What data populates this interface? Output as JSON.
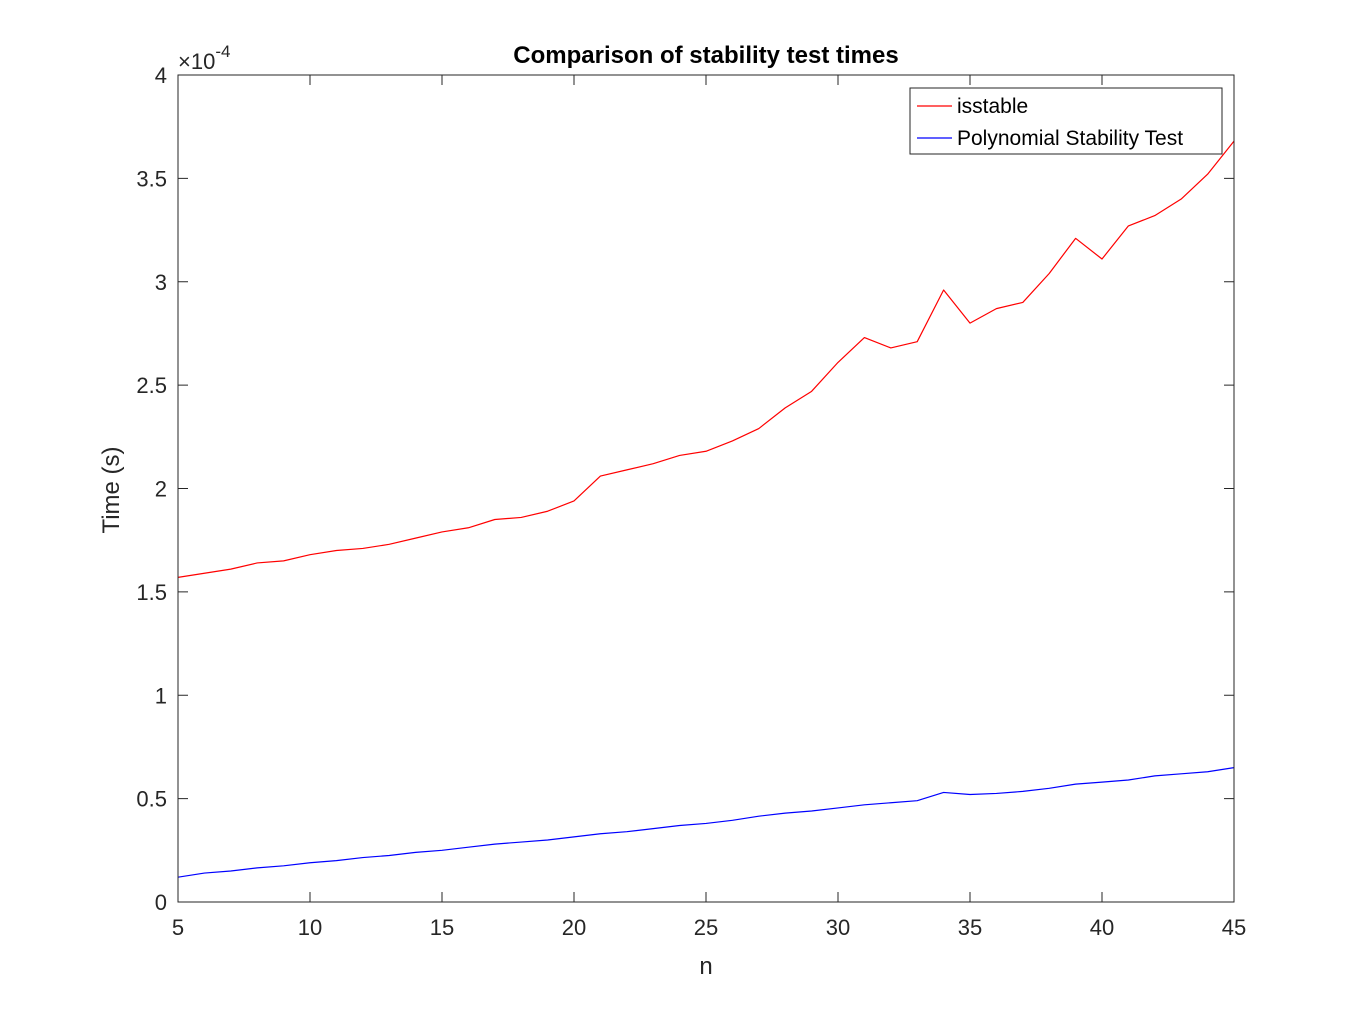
{
  "chart_data": {
    "type": "line",
    "title": "Comparison of stability test times",
    "xlabel": "n",
    "ylabel": "Time (s)",
    "y_exponent_label": "×10",
    "y_exponent_power": "-4",
    "xlim": [
      5,
      45
    ],
    "ylim": [
      0,
      4
    ],
    "x_ticks": [
      5,
      10,
      15,
      20,
      25,
      30,
      35,
      40,
      45
    ],
    "x_tick_labels": [
      "5",
      "10",
      "15",
      "20",
      "25",
      "30",
      "35",
      "40",
      "45"
    ],
    "y_ticks": [
      0,
      0.5,
      1,
      1.5,
      2,
      2.5,
      3,
      3.5,
      4
    ],
    "y_tick_labels": [
      "0",
      "0.5",
      "1",
      "1.5",
      "2",
      "2.5",
      "3",
      "3.5",
      "4"
    ],
    "grid": false,
    "legend_position": "top-right",
    "x": [
      5,
      6,
      7,
      8,
      9,
      10,
      11,
      12,
      13,
      14,
      15,
      16,
      17,
      18,
      19,
      20,
      21,
      22,
      23,
      24,
      25,
      26,
      27,
      28,
      29,
      30,
      31,
      32,
      33,
      34,
      35,
      36,
      37,
      38,
      39,
      40,
      41,
      42,
      43,
      44,
      45
    ],
    "series": [
      {
        "name": "isstable",
        "color": "#ff0000",
        "values": [
          1.57,
          1.59,
          1.61,
          1.64,
          1.65,
          1.68,
          1.7,
          1.71,
          1.73,
          1.76,
          1.79,
          1.81,
          1.85,
          1.86,
          1.89,
          1.94,
          2.06,
          2.09,
          2.12,
          2.16,
          2.18,
          2.23,
          2.29,
          2.39,
          2.47,
          2.61,
          2.73,
          2.68,
          2.71,
          2.96,
          2.8,
          2.87,
          2.9,
          3.04,
          3.21,
          3.11,
          3.27,
          3.32,
          3.4,
          3.52,
          3.68
        ]
      },
      {
        "name": "Polynomial Stability Test",
        "color": "#0000ff",
        "values": [
          0.12,
          0.14,
          0.15,
          0.165,
          0.175,
          0.19,
          0.2,
          0.215,
          0.225,
          0.24,
          0.25,
          0.265,
          0.28,
          0.29,
          0.3,
          0.315,
          0.33,
          0.34,
          0.355,
          0.37,
          0.38,
          0.395,
          0.415,
          0.43,
          0.44,
          0.455,
          0.47,
          0.48,
          0.49,
          0.53,
          0.52,
          0.525,
          0.535,
          0.55,
          0.57,
          0.58,
          0.59,
          0.61,
          0.62,
          0.63,
          0.65
        ]
      }
    ]
  }
}
